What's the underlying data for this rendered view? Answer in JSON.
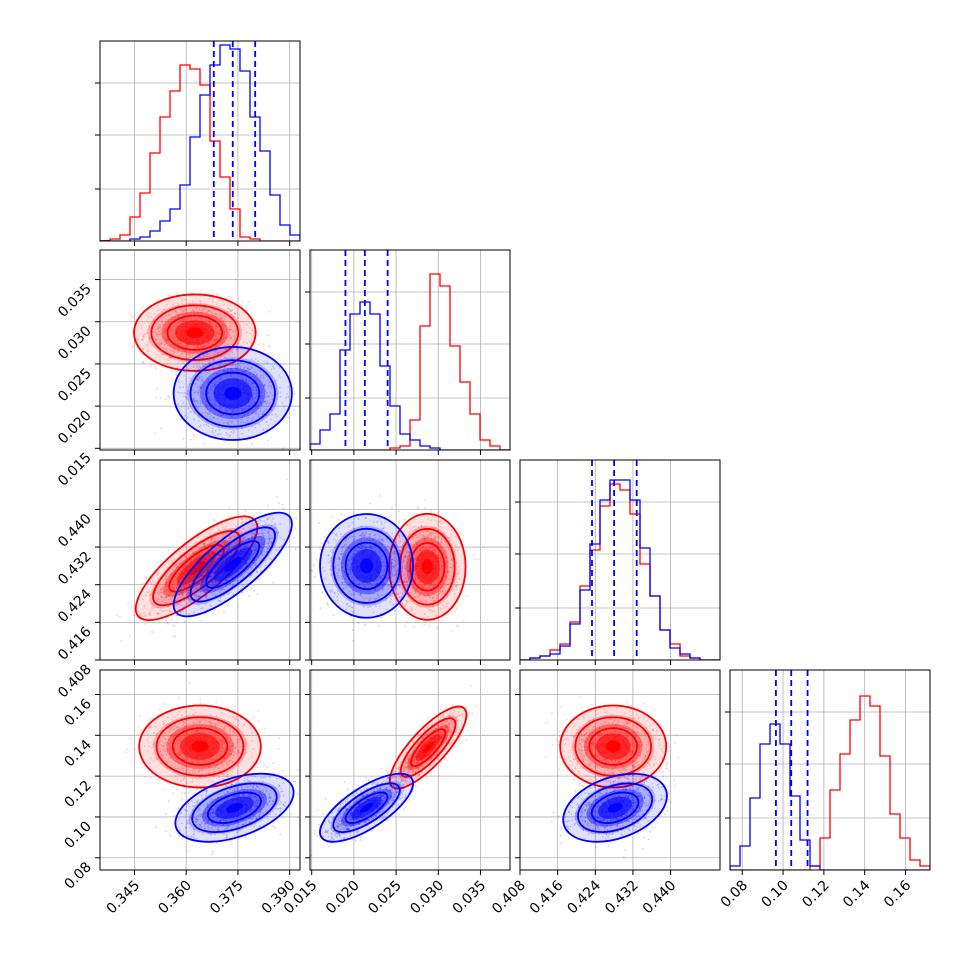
{
  "chart_data": {
    "type": "corner",
    "grid": true,
    "colors": {
      "series_a": "#ff0000",
      "series_b": "#0000ff"
    },
    "series": [
      {
        "color": "#ff0000"
      },
      {
        "color": "#0000ff"
      }
    ],
    "parameters": [
      {
        "range": [
          0.335,
          0.393
        ],
        "ticks": [
          0.345,
          0.36,
          0.375,
          0.39
        ],
        "tick_labels": [
          "0.345",
          "0.360",
          "0.375",
          "0.390"
        ],
        "quantiles_blue": [
          0.368,
          0.3735,
          0.38
        ],
        "hist_red": [
          0.002,
          0.01,
          0.03,
          0.12,
          0.24,
          0.44,
          0.62,
          0.75,
          0.88,
          0.86,
          0.78,
          0.5,
          0.32,
          0.16,
          0.02,
          0.01,
          0.0,
          0.0,
          0.0,
          0.0
        ],
        "hist_blue": [
          0.0,
          0.0,
          0.0,
          0.01,
          0.02,
          0.05,
          0.1,
          0.16,
          0.28,
          0.52,
          0.73,
          0.88,
          0.98,
          0.96,
          0.85,
          0.62,
          0.45,
          0.23,
          0.08,
          0.03
        ]
      },
      {
        "range": [
          0.0148,
          0.0385
        ],
        "ticks": [
          0.015,
          0.02,
          0.025,
          0.03,
          0.035
        ],
        "tick_labels": [
          "0.015",
          "0.020",
          "0.025",
          "0.030",
          "0.035"
        ],
        "quantiles_blue": [
          0.019,
          0.0213,
          0.024
        ],
        "hist_red": [
          0.0,
          0.0,
          0.0,
          0.0,
          0.0,
          0.0,
          0.0,
          0.0,
          0.01,
          0.02,
          0.15,
          0.62,
          0.88,
          0.82,
          0.52,
          0.34,
          0.18,
          0.05,
          0.02,
          0.0
        ],
        "hist_blue": [
          0.03,
          0.1,
          0.18,
          0.5,
          0.68,
          0.74,
          0.68,
          0.42,
          0.22,
          0.08,
          0.05,
          0.02,
          0.01,
          0.0,
          0.0,
          0.0,
          0.0,
          0.0,
          0.0,
          0.0
        ]
      },
      {
        "range": [
          0.408,
          0.4505
        ],
        "ticks": [
          0.408,
          0.416,
          0.424,
          0.432,
          0.44
        ],
        "tick_labels": [
          "0.408",
          "0.416",
          "0.424",
          "0.432",
          "0.440"
        ],
        "quantiles_blue": [
          0.4233,
          0.428,
          0.4328
        ],
        "hist_red": [
          0.0,
          0.01,
          0.02,
          0.05,
          0.08,
          0.19,
          0.37,
          0.55,
          0.77,
          0.88,
          0.85,
          0.73,
          0.48,
          0.32,
          0.15,
          0.08,
          0.02,
          0.01,
          0.0,
          0.0
        ],
        "hist_blue": [
          0.0,
          0.01,
          0.02,
          0.03,
          0.07,
          0.18,
          0.35,
          0.58,
          0.8,
          0.9,
          0.9,
          0.8,
          0.56,
          0.32,
          0.15,
          0.06,
          0.03,
          0.01,
          0.0,
          0.0
        ]
      },
      {
        "range": [
          0.074,
          0.172
        ],
        "ticks": [
          0.08,
          0.1,
          0.12,
          0.14,
          0.16
        ],
        "tick_labels": [
          "0.08",
          "0.10",
          "0.12",
          "0.14",
          "0.16"
        ],
        "quantiles_blue": [
          0.0965,
          0.104,
          0.112
        ],
        "hist_red": [
          0.0,
          0.0,
          0.0,
          0.0,
          0.0,
          0.0,
          0.0,
          0.0,
          0.02,
          0.16,
          0.4,
          0.58,
          0.75,
          0.87,
          0.82,
          0.57,
          0.28,
          0.16,
          0.05,
          0.02
        ],
        "hist_blue": [
          0.02,
          0.12,
          0.36,
          0.63,
          0.73,
          0.63,
          0.37,
          0.15,
          0.02,
          0.0,
          0.0,
          0.0,
          0.0,
          0.0,
          0.0,
          0.0,
          0.0,
          0.0,
          0.0,
          0.0
        ]
      }
    ],
    "pairs": [
      {
        "x": 0,
        "y": 1,
        "red": {
          "mx": 0.3625,
          "my": 0.0287,
          "sx": 0.0072,
          "sy": 0.00185,
          "rho": 0.0
        },
        "blue": {
          "mx": 0.3735,
          "my": 0.0215,
          "sx": 0.007,
          "sy": 0.00225,
          "rho": 0.0
        }
      },
      {
        "x": 0,
        "y": 2,
        "red": {
          "mx": 0.363,
          "my": 0.4275,
          "sx": 0.0072,
          "sy": 0.0045,
          "rho": 0.78
        },
        "blue": {
          "mx": 0.3735,
          "my": 0.4283,
          "sx": 0.007,
          "sy": 0.0045,
          "rho": 0.78
        }
      },
      {
        "x": 1,
        "y": 2,
        "red": {
          "mx": 0.0287,
          "my": 0.4278,
          "sx": 0.00185,
          "sy": 0.0046,
          "rho": 0.0
        },
        "blue": {
          "mx": 0.0215,
          "my": 0.428,
          "sx": 0.00225,
          "sy": 0.0045,
          "rho": 0.0
        }
      },
      {
        "x": 0,
        "y": 3,
        "red": {
          "mx": 0.364,
          "my": 0.1345,
          "sx": 0.0072,
          "sy": 0.0082,
          "rho": 0.0
        },
        "blue": {
          "mx": 0.374,
          "my": 0.1045,
          "sx": 0.007,
          "sy": 0.0068,
          "rho": 0.45
        }
      },
      {
        "x": 1,
        "y": 3,
        "red": {
          "mx": 0.0288,
          "my": 0.134,
          "sx": 0.00185,
          "sy": 0.0082,
          "rho": 0.8
        },
        "blue": {
          "mx": 0.0215,
          "my": 0.1045,
          "sx": 0.00225,
          "sy": 0.0068,
          "rho": 0.72
        }
      },
      {
        "x": 2,
        "y": 3,
        "red": {
          "mx": 0.4278,
          "my": 0.1345,
          "sx": 0.0046,
          "sy": 0.0082,
          "rho": 0.0
        },
        "blue": {
          "mx": 0.4282,
          "my": 0.1045,
          "sx": 0.0045,
          "sy": 0.0068,
          "rho": 0.35
        }
      }
    ]
  }
}
